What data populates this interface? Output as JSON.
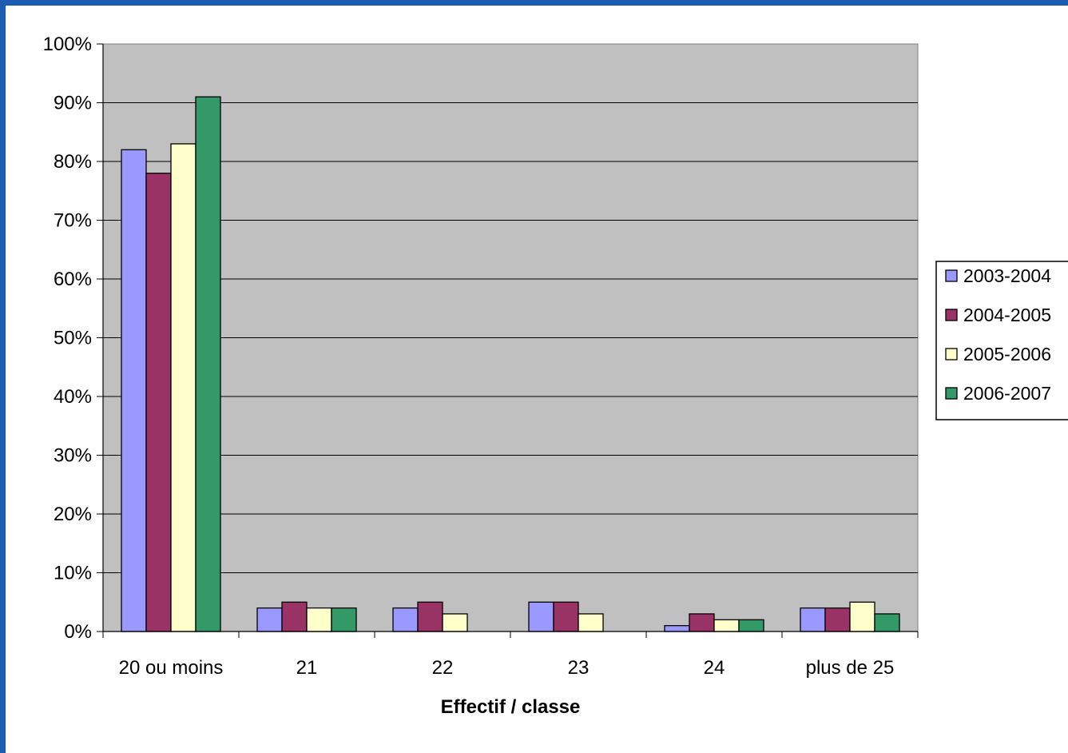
{
  "chart_data": {
    "type": "bar",
    "title": "",
    "xlabel": "Effectif / classe",
    "ylabel": "",
    "ylim": [
      0,
      100
    ],
    "yticks": [
      "0%",
      "10%",
      "20%",
      "30%",
      "40%",
      "50%",
      "60%",
      "70%",
      "80%",
      "90%",
      "100%"
    ],
    "categories": [
      "20 ou moins",
      "21",
      "22",
      "23",
      "24",
      "plus de 25"
    ],
    "series": [
      {
        "name": "2003-2004",
        "color": "#9999ff",
        "values": [
          82,
          4,
          4,
          5,
          1,
          4
        ]
      },
      {
        "name": "2004-2005",
        "color": "#993366",
        "values": [
          78,
          5,
          5,
          5,
          3,
          4
        ]
      },
      {
        "name": "2005-2006",
        "color": "#ffffcc",
        "values": [
          83,
          4,
          3,
          3,
          2,
          5
        ]
      },
      {
        "name": "2006-2007",
        "color": "#339966",
        "values": [
          91,
          4,
          0,
          0,
          2,
          3
        ]
      }
    ],
    "plot_background": "#c0c0c0",
    "grid": true,
    "legend": "right"
  }
}
